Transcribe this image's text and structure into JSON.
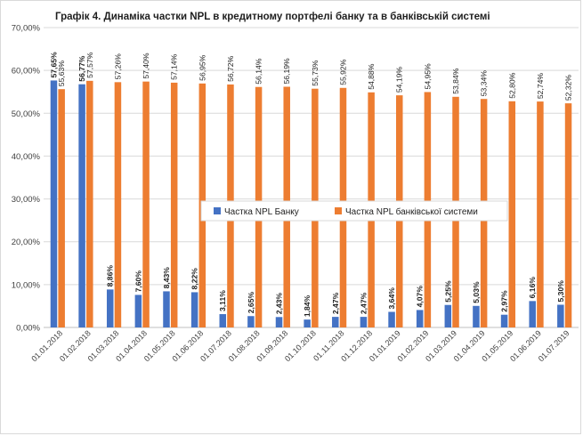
{
  "chart_data": {
    "type": "bar",
    "title": "Графік 4. Динаміка частки NPL в кредитному портфелі банку та в банківській системі",
    "xlabel": "",
    "ylabel": "",
    "ylim": [
      0,
      70
    ],
    "yticks": [
      "0,00%",
      "10,00%",
      "20,00%",
      "30,00%",
      "40,00%",
      "50,00%",
      "60,00%",
      "70,00%"
    ],
    "grid": true,
    "legend_position": "center",
    "categories": [
      "01.01.2018",
      "01.02.2018",
      "01.03.2018",
      "01.04.2018",
      "01.05.2018",
      "01.06.2018",
      "01.07.2018",
      "01.08.2018",
      "01.09.2018",
      "01.10.2018",
      "01.11.2018",
      "01.12.2018",
      "01.01.2019",
      "01.02.2019",
      "01.03.2019",
      "01.04.2019",
      "01.05.2019",
      "01.06.2019",
      "01.07.2019"
    ],
    "series": [
      {
        "name": "Частка NPL Банку",
        "color": "#4472c4",
        "values": [
          57.65,
          56.77,
          8.86,
          7.6,
          8.43,
          8.22,
          3.11,
          2.65,
          2.43,
          1.84,
          2.47,
          2.47,
          3.64,
          4.07,
          5.25,
          5.03,
          2.97,
          6.16,
          5.3
        ],
        "labels": [
          "57,65%",
          "56,77%",
          "8,86%",
          "7,60%",
          "8,43%",
          "8,22%",
          "3,11%",
          "2,65%",
          "2,43%",
          "1,84%",
          "2,47%",
          "2,47%",
          "3,64%",
          "4,07%",
          "5,25%",
          "5,03%",
          "2,97%",
          "6,16%",
          "5,30%"
        ]
      },
      {
        "name": "Частка NPL банківської системи",
        "color": "#ed7d31",
        "values": [
          55.63,
          57.57,
          57.26,
          57.4,
          57.14,
          56.95,
          56.72,
          56.14,
          56.19,
          55.73,
          55.92,
          54.88,
          54.19,
          54.95,
          53.84,
          53.34,
          52.8,
          52.74,
          52.32
        ],
        "labels": [
          "55,63%",
          "57,57%",
          "57,26%",
          "57,40%",
          "57,14%",
          "56,95%",
          "56,72%",
          "56,14%",
          "56,19%",
          "55,73%",
          "55,92%",
          "54,88%",
          "54,19%",
          "54,95%",
          "53,84%",
          "53,34%",
          "52,80%",
          "52,74%",
          "52,32%"
        ]
      }
    ]
  }
}
